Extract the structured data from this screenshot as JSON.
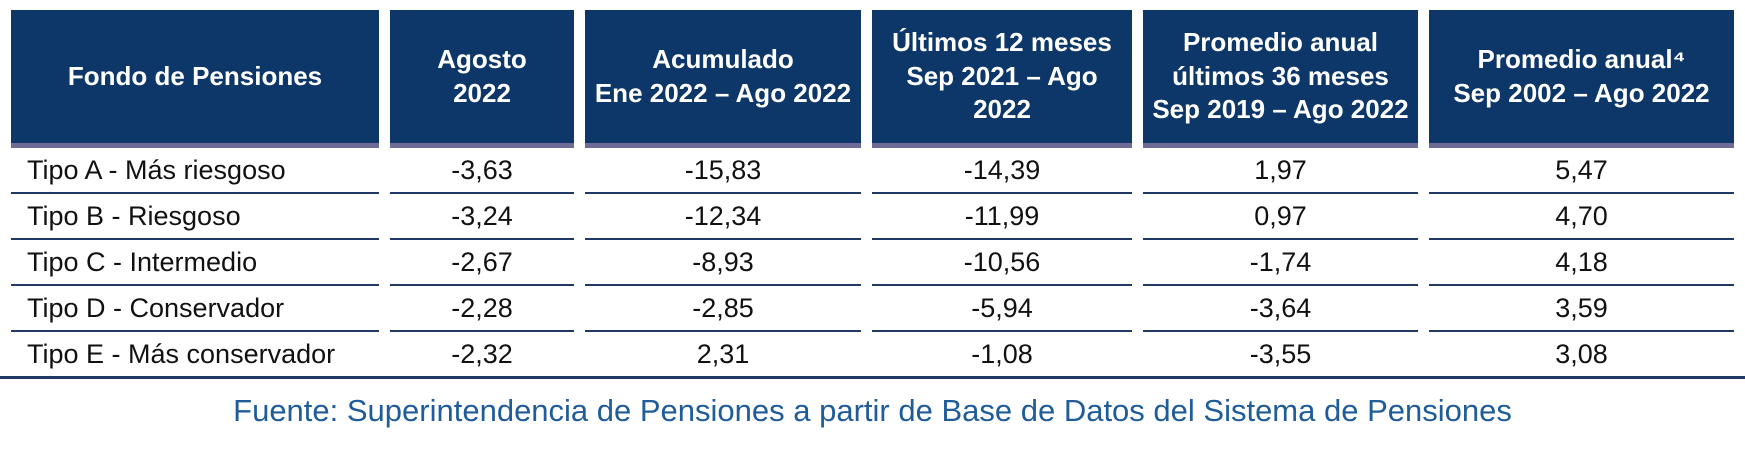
{
  "table": {
    "columns": [
      {
        "label": "Fondo de Pensiones"
      },
      {
        "label": "Agosto\n2022"
      },
      {
        "label": "Acumulado\nEne 2022 – Ago 2022"
      },
      {
        "label": "Últimos 12 meses\nSep 2021 – Ago 2022"
      },
      {
        "label": "Promedio anual\núltimos 36 meses\nSep 2019 – Ago 2022"
      },
      {
        "label": "Promedio anual⁴\nSep 2002 – Ago 2022"
      }
    ],
    "rows": [
      {
        "label": "Tipo A - Más riesgoso",
        "values": [
          "-3,63",
          "-15,83",
          "-14,39",
          "1,97",
          "5,47"
        ]
      },
      {
        "label": "Tipo B - Riesgoso",
        "values": [
          "-3,24",
          "-12,34",
          "-11,99",
          "0,97",
          "4,70"
        ]
      },
      {
        "label": "Tipo C - Intermedio",
        "values": [
          "-2,67",
          "-8,93",
          "-10,56",
          "-1,74",
          "4,18"
        ]
      },
      {
        "label": "Tipo D - Conservador",
        "values": [
          "-2,28",
          "-2,85",
          "-5,94",
          "-3,64",
          "3,59"
        ]
      },
      {
        "label": "Tipo E - Más conservador",
        "values": [
          "-2,32",
          "2,31",
          "-1,08",
          "-3,55",
          "3,08"
        ]
      }
    ]
  },
  "source_note": "Fuente: Superintendencia de Pensiones a partir de Base de Datos del Sistema de Pensiones",
  "colors": {
    "header_background": "#0D3768",
    "header_text": "#FFFFFF",
    "header_underline": "#6E6C96",
    "row_separator": "#1F3864",
    "body_text": "#111111",
    "source_text": "#1F5C99"
  }
}
